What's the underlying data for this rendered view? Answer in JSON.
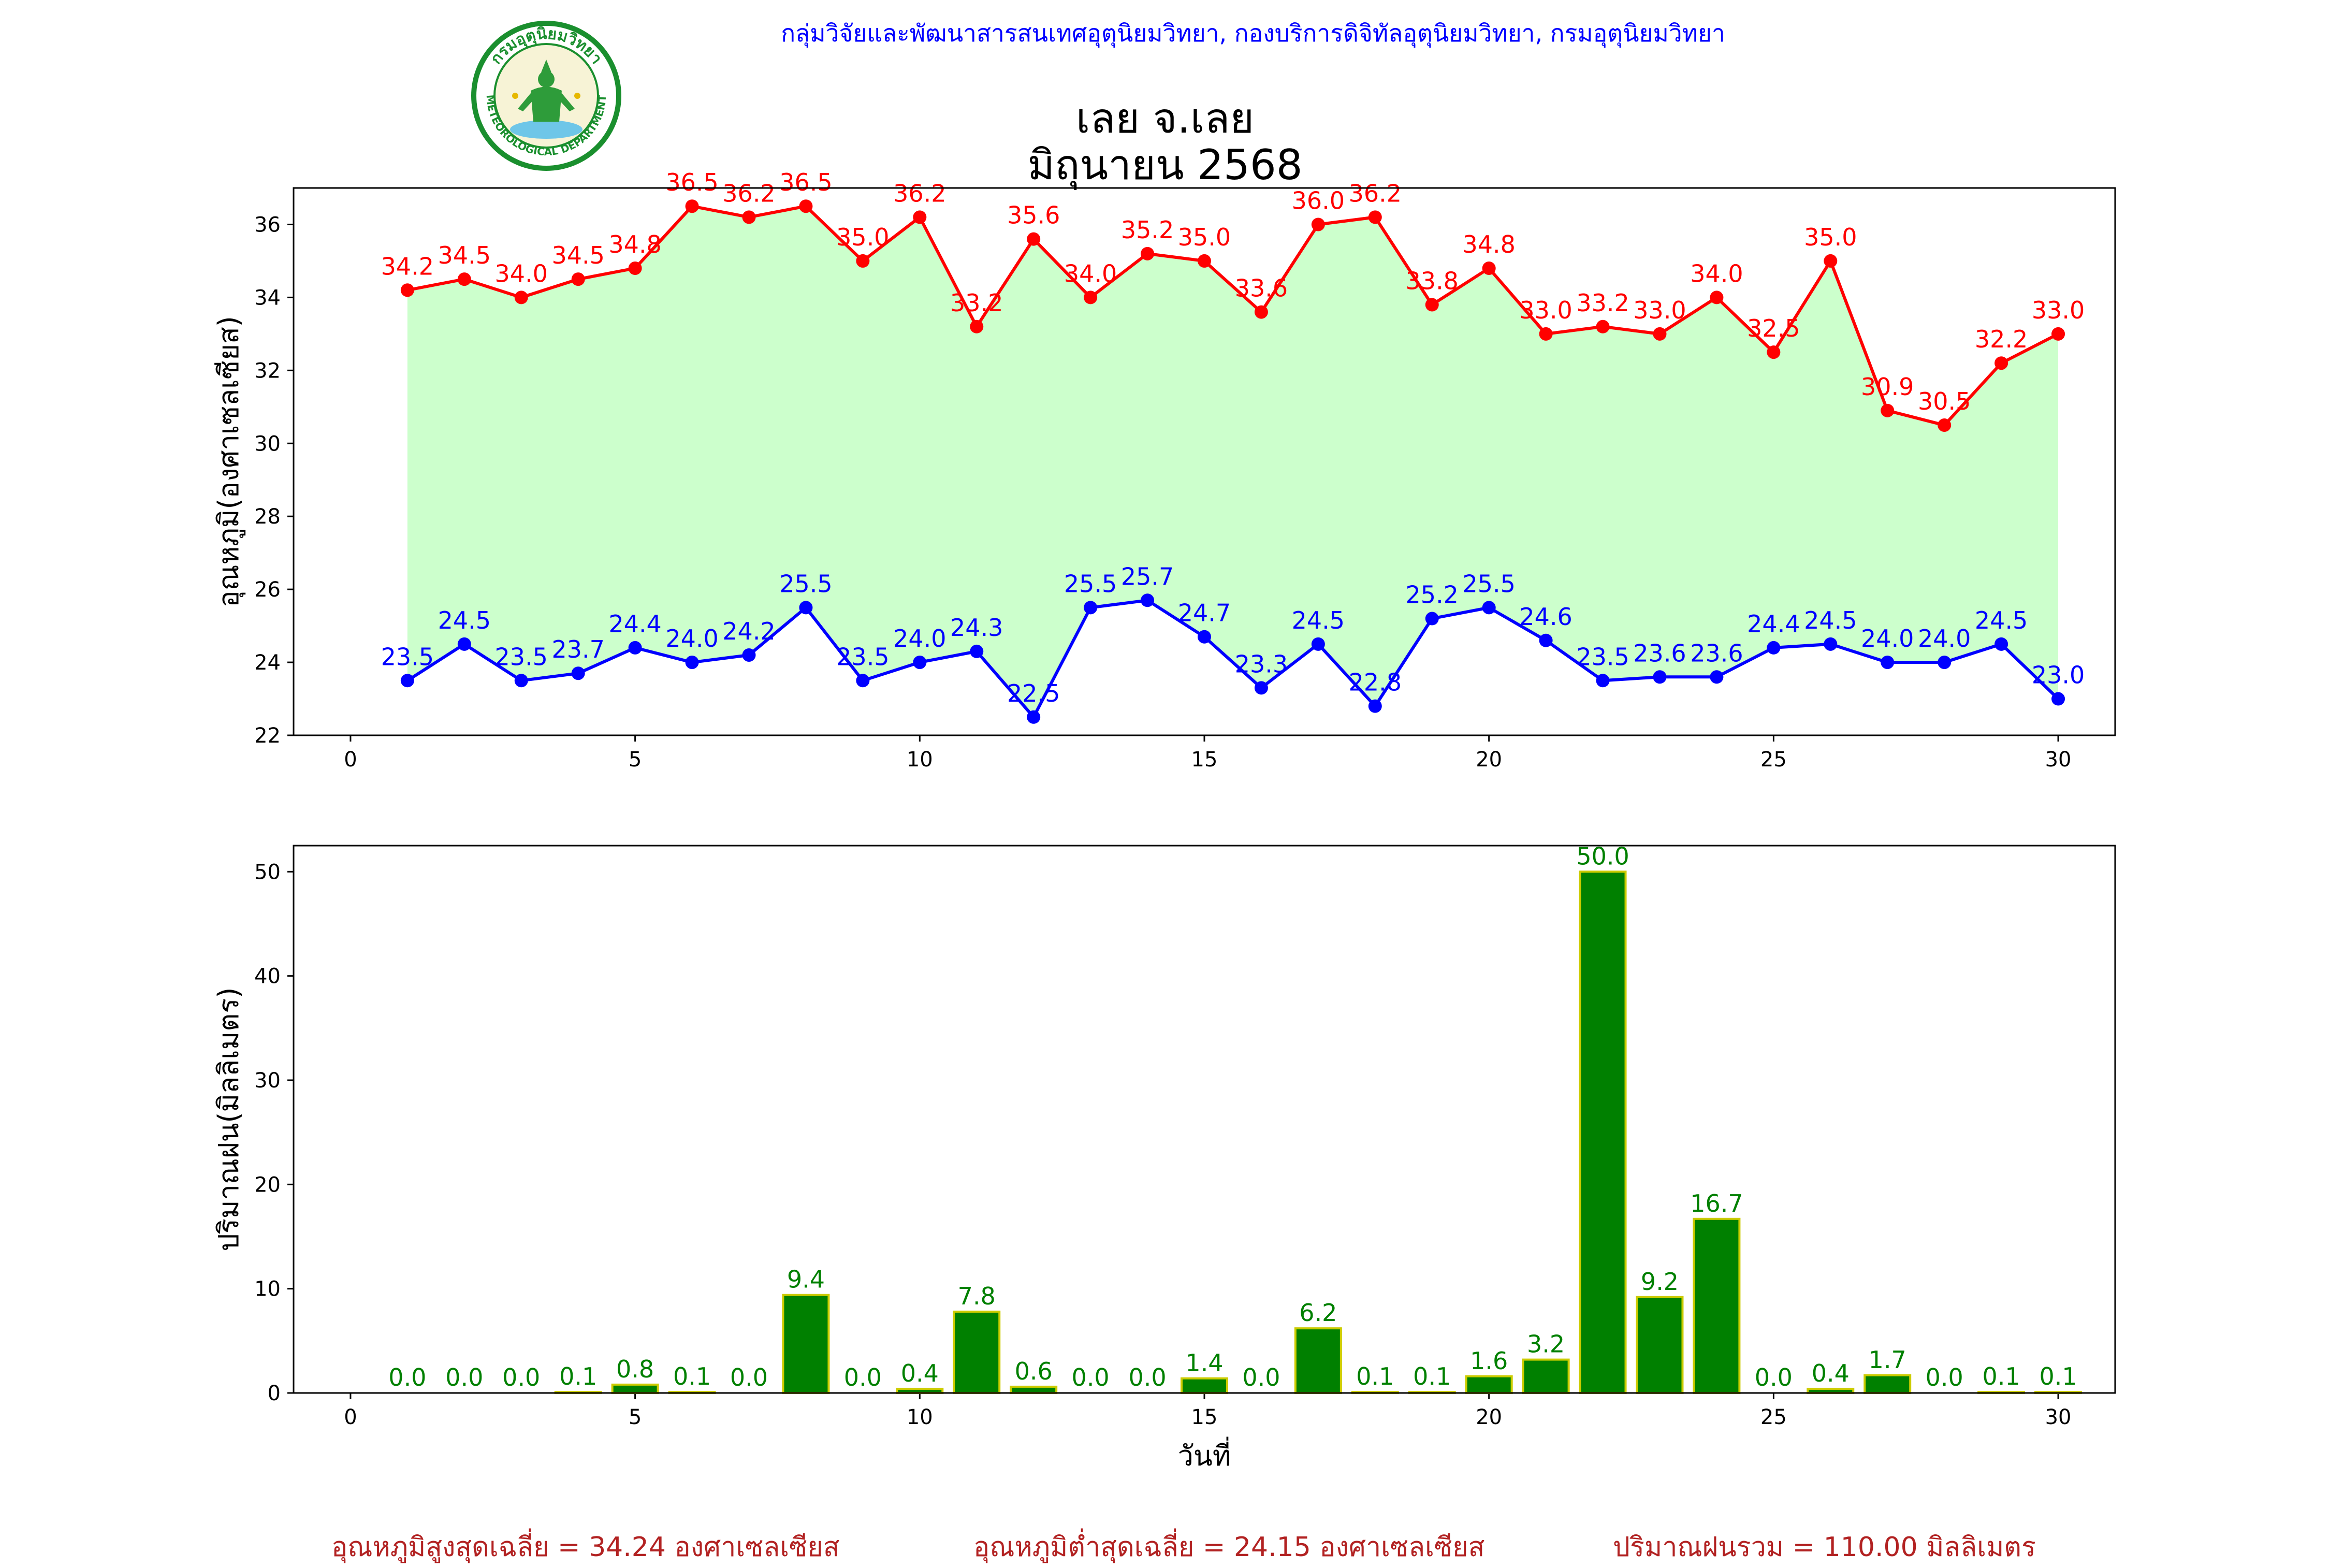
{
  "header": {
    "agency": "กลุ่มวิจัยและพัฒนาสารสนเทศอุตุนิยมวิทยา, กองบริการดิจิทัลอุตุนิยมวิทยา, กรมอุตุนิยมวิทยา",
    "station": "เลย จ.เลย",
    "month": "มิถุนายน 2568",
    "logo_text_top": "กรมอุตุนิยมวิทยา",
    "logo_text_bottom": "METEOROLOGICAL DEPARTMENT"
  },
  "colors": {
    "tmax": "#ff0000",
    "tmin": "#0000ff",
    "fill": "#ccffcc",
    "rain_bar": "#008000",
    "rain_edge": "#cccc00",
    "footer": "#b22222"
  },
  "chart_data": [
    {
      "type": "line",
      "ylabel": "อุณหภูมิ(องศาเซลเซียส)",
      "xlim": [
        -1,
        31
      ],
      "ylim": [
        22,
        37
      ],
      "xticks": [
        0,
        5,
        10,
        15,
        20,
        25,
        30
      ],
      "yticks": [
        22,
        24,
        26,
        28,
        30,
        32,
        34,
        36
      ],
      "grid": false,
      "x": [
        1,
        2,
        3,
        4,
        5,
        6,
        7,
        8,
        9,
        10,
        11,
        12,
        13,
        14,
        15,
        16,
        17,
        18,
        19,
        20,
        21,
        22,
        23,
        24,
        25,
        26,
        27,
        28,
        29,
        30
      ],
      "series": [
        {
          "key": "tmax",
          "values": [
            34.2,
            34.5,
            34.0,
            34.5,
            34.8,
            36.5,
            36.2,
            36.5,
            35.0,
            36.2,
            33.2,
            35.6,
            34.0,
            35.2,
            35.0,
            33.6,
            36.0,
            36.2,
            33.8,
            34.8,
            33.0,
            33.2,
            33.0,
            34.0,
            32.5,
            35.0,
            30.9,
            30.5,
            32.2,
            33.0
          ],
          "labels": [
            "34.2",
            "34.5",
            "34.0",
            "34.5",
            "34.8",
            "36.5",
            "36.2",
            "36.5",
            "35.0",
            "36.2",
            "33.2",
            "35.6",
            "34.0",
            "35.2",
            "35.0",
            "33.6",
            "36.0",
            "36.2",
            "33.8",
            "34.8",
            "33.0",
            "33.2",
            "33.0",
            "34.0",
            "32.5",
            "35.0",
            "30.9",
            "30.5",
            "32.2",
            "33.0"
          ]
        },
        {
          "key": "tmin",
          "values": [
            23.5,
            24.5,
            23.5,
            23.7,
            24.4,
            24.0,
            24.2,
            25.5,
            23.5,
            24.0,
            24.3,
            22.5,
            25.5,
            25.7,
            24.7,
            23.3,
            24.5,
            22.8,
            25.2,
            25.5,
            24.6,
            23.5,
            23.6,
            23.6,
            24.4,
            24.5,
            24.0,
            24.0,
            24.5,
            23.0
          ],
          "labels": [
            "23.5",
            "24.5",
            "23.5",
            "23.7",
            "24.4",
            "24.0",
            "24.2",
            "25.5",
            "23.5",
            "24.0",
            "24.3",
            "22.5",
            "25.5",
            "25.7",
            "24.7",
            "23.3",
            "24.5",
            "22.8",
            "25.2",
            "25.5",
            "24.6",
            "23.5",
            "23.6",
            "23.6",
            "24.4",
            "24.5",
            "24.0",
            "24.0",
            "24.5",
            "23.0"
          ]
        }
      ]
    },
    {
      "type": "bar",
      "ylabel": "ปริมาณฝน(มิลลิเมตร)",
      "xlabel": "วันที่",
      "xlim": [
        -1,
        31
      ],
      "ylim": [
        0,
        52.5
      ],
      "xticks": [
        0,
        5,
        10,
        15,
        20,
        25,
        30
      ],
      "yticks": [
        0,
        10,
        20,
        30,
        40,
        50
      ],
      "grid": false,
      "x": [
        1,
        2,
        3,
        4,
        5,
        6,
        7,
        8,
        9,
        10,
        11,
        12,
        13,
        14,
        15,
        16,
        17,
        18,
        19,
        20,
        21,
        22,
        23,
        24,
        25,
        26,
        27,
        28,
        29,
        30
      ],
      "values": [
        0.0,
        0.0,
        0.0,
        0.1,
        0.8,
        0.1,
        0.0,
        9.4,
        0.0,
        0.4,
        7.8,
        0.6,
        0.0,
        0.0,
        1.4,
        0.0,
        6.2,
        0.1,
        0.1,
        1.6,
        3.2,
        50.0,
        9.2,
        16.7,
        0.0,
        0.4,
        1.7,
        0.0,
        0.1,
        0.1
      ],
      "labels": [
        "0.0",
        "0.0",
        "0.0",
        "0.1",
        "0.8",
        "0.1",
        "0.0",
        "9.4",
        "0.0",
        "0.4",
        "7.8",
        "0.6",
        "0.0",
        "0.0",
        "1.4",
        "0.0",
        "6.2",
        "0.1",
        "0.1",
        "1.6",
        "3.2",
        "50.0",
        "9.2",
        "16.7",
        "0.0",
        "0.4",
        "1.7",
        "0.0",
        "0.1",
        "0.1"
      ]
    }
  ],
  "footer": {
    "avg_max": "อุณหภูมิสูงสุดเฉลี่ย = 34.24 องศาเซลเซียส",
    "avg_min": "อุณหภูมิต่ำสุดเฉลี่ย = 24.15 องศาเซลเซียส",
    "total_rain": "ปริมาณฝนรวม = 110.00 มิลลิเมตร"
  }
}
